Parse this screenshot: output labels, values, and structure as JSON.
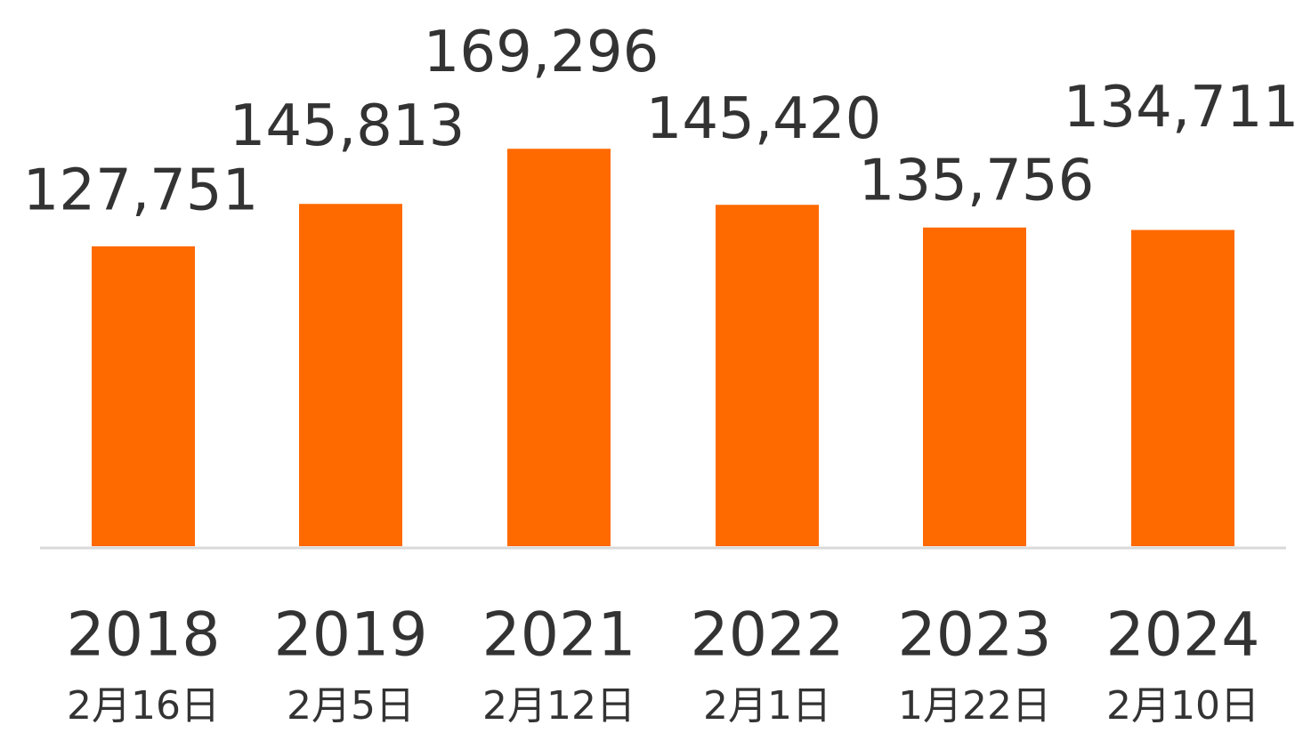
{
  "chart_data": {
    "type": "bar",
    "categories": [
      "2018",
      "2019",
      "2021",
      "2022",
      "2023",
      "2024"
    ],
    "category_dates": [
      "2月16日",
      "2月5日",
      "2月12日",
      "2月1日",
      "1月22日",
      "2月10日"
    ],
    "values": [
      127751,
      145813,
      169296,
      145420,
      135756,
      134711
    ],
    "value_labels": [
      "127,751",
      "145,813",
      "169,296",
      "145,420",
      "135,756",
      "134,711"
    ],
    "color": "#ff6a00",
    "ylim": [
      0,
      180000
    ]
  }
}
